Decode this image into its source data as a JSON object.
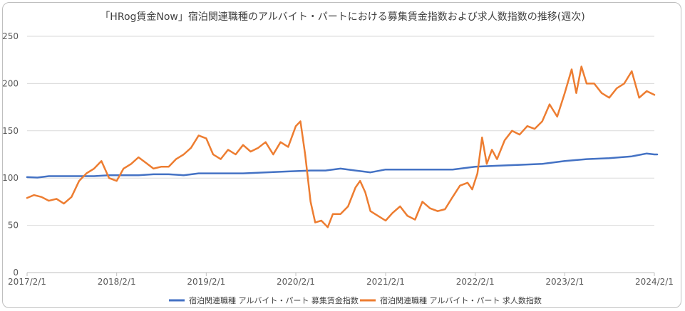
{
  "chart_data": {
    "type": "line",
    "title": "「HRog賃金Now」宿泊関連職種のアルバイト・パートにおける募集賃金指数および求人数指数の推移(週次)",
    "xlabel": "",
    "ylabel": "",
    "x_ticks": [
      "2017/2/1",
      "2018/2/1",
      "2019/2/1",
      "2020/2/1",
      "2021/2/1",
      "2022/2/1",
      "2023/2/1",
      "2024/2/1"
    ],
    "y_ticks": [
      "0",
      "50",
      "100",
      "150",
      "200",
      "250"
    ],
    "ylim": [
      0,
      250
    ],
    "xlim": [
      "2017/2/1",
      "2024/2/1"
    ],
    "legend_position": "bottom",
    "grid": "horizontal",
    "series": [
      {
        "name": "宿泊関連職種 アルバイト・パート 募集賃金指数",
        "color": "#4472C4",
        "points": [
          [
            "2017/2/1",
            101
          ],
          [
            "2017/3/15",
            100.5
          ],
          [
            "2017/5/1",
            102
          ],
          [
            "2017/7/1",
            102
          ],
          [
            "2017/9/1",
            102
          ],
          [
            "2017/11/1",
            102
          ],
          [
            "2018/1/1",
            103
          ],
          [
            "2018/3/1",
            103
          ],
          [
            "2018/5/1",
            103
          ],
          [
            "2018/7/1",
            104
          ],
          [
            "2018/9/1",
            104
          ],
          [
            "2018/11/1",
            103
          ],
          [
            "2019/1/1",
            105
          ],
          [
            "2019/4/1",
            105
          ],
          [
            "2019/7/1",
            105
          ],
          [
            "2019/10/1",
            106
          ],
          [
            "2020/1/1",
            107
          ],
          [
            "2020/4/1",
            108
          ],
          [
            "2020/6/1",
            108
          ],
          [
            "2020/8/1",
            110
          ],
          [
            "2020/10/1",
            108
          ],
          [
            "2020/12/1",
            106
          ],
          [
            "2021/2/1",
            109
          ],
          [
            "2021/5/1",
            109
          ],
          [
            "2021/8/1",
            109
          ],
          [
            "2021/11/1",
            109
          ],
          [
            "2022/2/1",
            112
          ],
          [
            "2022/5/1",
            113
          ],
          [
            "2022/8/1",
            114
          ],
          [
            "2022/11/1",
            115
          ],
          [
            "2023/2/1",
            118
          ],
          [
            "2023/5/1",
            120
          ],
          [
            "2023/8/1",
            121
          ],
          [
            "2023/11/1",
            123
          ],
          [
            "2024/1/1",
            126
          ],
          [
            "2024/2/1",
            125
          ],
          [
            "2024/3/1",
            125
          ]
        ]
      },
      {
        "name": "宿泊関連職種 アルバイト・パート 求人数指数",
        "color": "#ED7D31",
        "points": [
          [
            "2017/2/1",
            79
          ],
          [
            "2017/3/1",
            82
          ],
          [
            "2017/4/1",
            80
          ],
          [
            "2017/5/1",
            76
          ],
          [
            "2017/6/1",
            78
          ],
          [
            "2017/7/1",
            73
          ],
          [
            "2017/8/1",
            80
          ],
          [
            "2017/9/1",
            97
          ],
          [
            "2017/10/1",
            105
          ],
          [
            "2017/11/1",
            110
          ],
          [
            "2017/12/1",
            118
          ],
          [
            "2018/1/1",
            100
          ],
          [
            "2018/2/1",
            97
          ],
          [
            "2018/3/1",
            110
          ],
          [
            "2018/4/1",
            115
          ],
          [
            "2018/5/1",
            122
          ],
          [
            "2018/6/1",
            116
          ],
          [
            "2018/7/1",
            110
          ],
          [
            "2018/8/1",
            112
          ],
          [
            "2018/9/1",
            112
          ],
          [
            "2018/10/1",
            120
          ],
          [
            "2018/11/1",
            125
          ],
          [
            "2018/12/1",
            132
          ],
          [
            "2019/1/1",
            145
          ],
          [
            "2019/2/1",
            142
          ],
          [
            "2019/3/1",
            125
          ],
          [
            "2019/4/1",
            120
          ],
          [
            "2019/5/1",
            130
          ],
          [
            "2019/6/1",
            125
          ],
          [
            "2019/7/1",
            135
          ],
          [
            "2019/8/1",
            128
          ],
          [
            "2019/9/1",
            132
          ],
          [
            "2019/10/1",
            138
          ],
          [
            "2019/11/1",
            125
          ],
          [
            "2019/12/1",
            138
          ],
          [
            "2020/1/1",
            133
          ],
          [
            "2020/2/1",
            155
          ],
          [
            "2020/2/20",
            160
          ],
          [
            "2020/3/10",
            125
          ],
          [
            "2020/4/1",
            75
          ],
          [
            "2020/4/20",
            53
          ],
          [
            "2020/5/15",
            55
          ],
          [
            "2020/6/10",
            48
          ],
          [
            "2020/7/1",
            62
          ],
          [
            "2020/8/1",
            62
          ],
          [
            "2020/9/1",
            70
          ],
          [
            "2020/10/1",
            90
          ],
          [
            "2020/10/20",
            97
          ],
          [
            "2020/11/10",
            85
          ],
          [
            "2020/12/1",
            65
          ],
          [
            "2021/1/1",
            60
          ],
          [
            "2021/2/1",
            55
          ],
          [
            "2021/3/1",
            63
          ],
          [
            "2021/4/1",
            70
          ],
          [
            "2021/5/1",
            60
          ],
          [
            "2021/6/1",
            56
          ],
          [
            "2021/7/1",
            75
          ],
          [
            "2021/8/1",
            68
          ],
          [
            "2021/9/1",
            65
          ],
          [
            "2021/10/1",
            67
          ],
          [
            "2021/11/1",
            80
          ],
          [
            "2021/12/1",
            92
          ],
          [
            "2022/1/1",
            95
          ],
          [
            "2022/1/20",
            88
          ],
          [
            "2022/2/10",
            105
          ],
          [
            "2022/3/1",
            143
          ],
          [
            "2022/3/20",
            115
          ],
          [
            "2022/4/10",
            130
          ],
          [
            "2022/5/1",
            120
          ],
          [
            "2022/6/1",
            140
          ],
          [
            "2022/7/1",
            150
          ],
          [
            "2022/8/1",
            146
          ],
          [
            "2022/9/1",
            155
          ],
          [
            "2022/10/1",
            152
          ],
          [
            "2022/11/1",
            160
          ],
          [
            "2022/12/1",
            178
          ],
          [
            "2023/1/1",
            165
          ],
          [
            "2023/2/1",
            190
          ],
          [
            "2023/3/1",
            215
          ],
          [
            "2023/3/20",
            190
          ],
          [
            "2023/4/10",
            218
          ],
          [
            "2023/5/1",
            200
          ],
          [
            "2023/6/1",
            200
          ],
          [
            "2023/7/1",
            190
          ],
          [
            "2023/8/1",
            185
          ],
          [
            "2023/9/1",
            195
          ],
          [
            "2023/10/1",
            200
          ],
          [
            "2023/11/1",
            213
          ],
          [
            "2023/12/1",
            185
          ],
          [
            "2024/1/1",
            192
          ],
          [
            "2024/2/1",
            188
          ]
        ]
      }
    ]
  }
}
